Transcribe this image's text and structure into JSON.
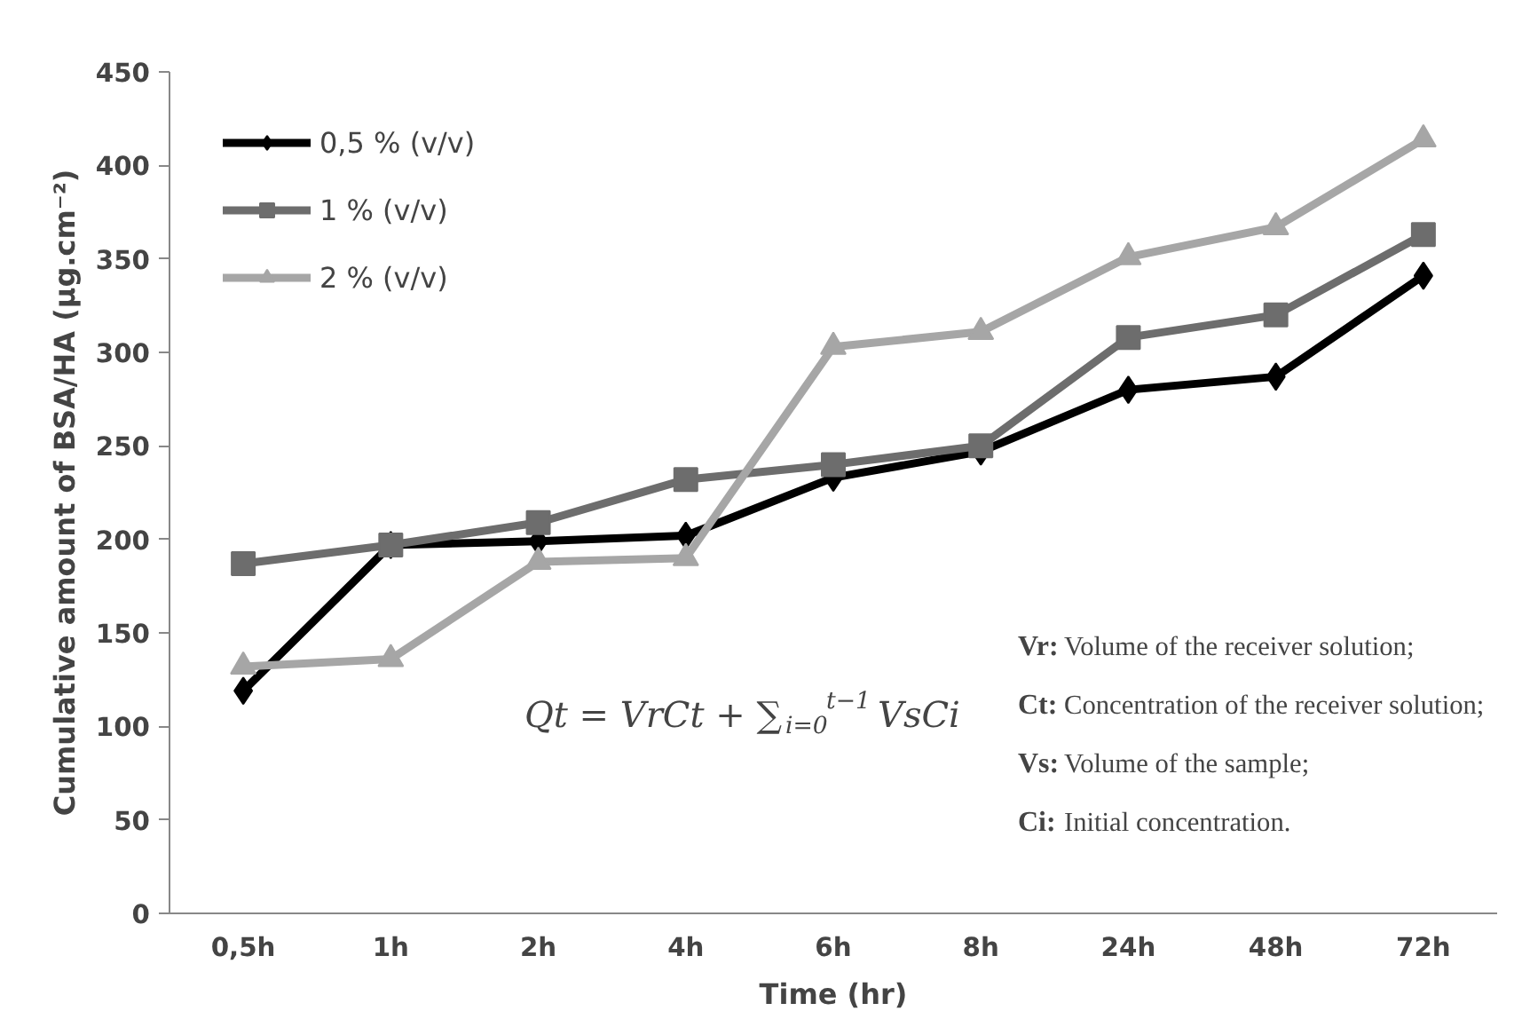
{
  "chart_data": {
    "type": "line",
    "xlabel": "Time (hr)",
    "ylabel": "Cumulative amount of BSA/HA (μg.cm⁻²)",
    "categories": [
      "0,5h",
      "1h",
      "2h",
      "4h",
      "6h",
      "8h",
      "24h",
      "48h",
      "72h"
    ],
    "series": [
      {
        "name": "0,5 % (v/v)",
        "color": "#000000",
        "marker": "diamond",
        "values": [
          119,
          197,
          199,
          202,
          233,
          247,
          280,
          287,
          341
        ]
      },
      {
        "name": "1 % (v/v)",
        "color": "#6d6d6d",
        "marker": "square",
        "values": [
          187,
          197,
          209,
          232,
          240,
          250,
          308,
          320,
          363
        ]
      },
      {
        "name": "2 % (v/v)",
        "color": "#a6a6a6",
        "marker": "triangle",
        "values": [
          132,
          136,
          188,
          190,
          303,
          311,
          351,
          367,
          414
        ]
      }
    ],
    "ylim": [
      0,
      450
    ],
    "yticks": [
      0,
      50,
      100,
      150,
      200,
      250,
      300,
      350,
      400,
      450
    ],
    "grid": false,
    "legend": "top left",
    "line_style": "solid",
    "annotations": [
      "Qt = VrCt + ∑$_{i=0}$$^{t−1}$ VsCi",
      "Vr: Volume of the receiver solution;",
      "Ct: Concentration of the receiver solution;",
      "Vs: Volume of the sample;",
      "Ci: Initial concentration."
    ]
  }
}
